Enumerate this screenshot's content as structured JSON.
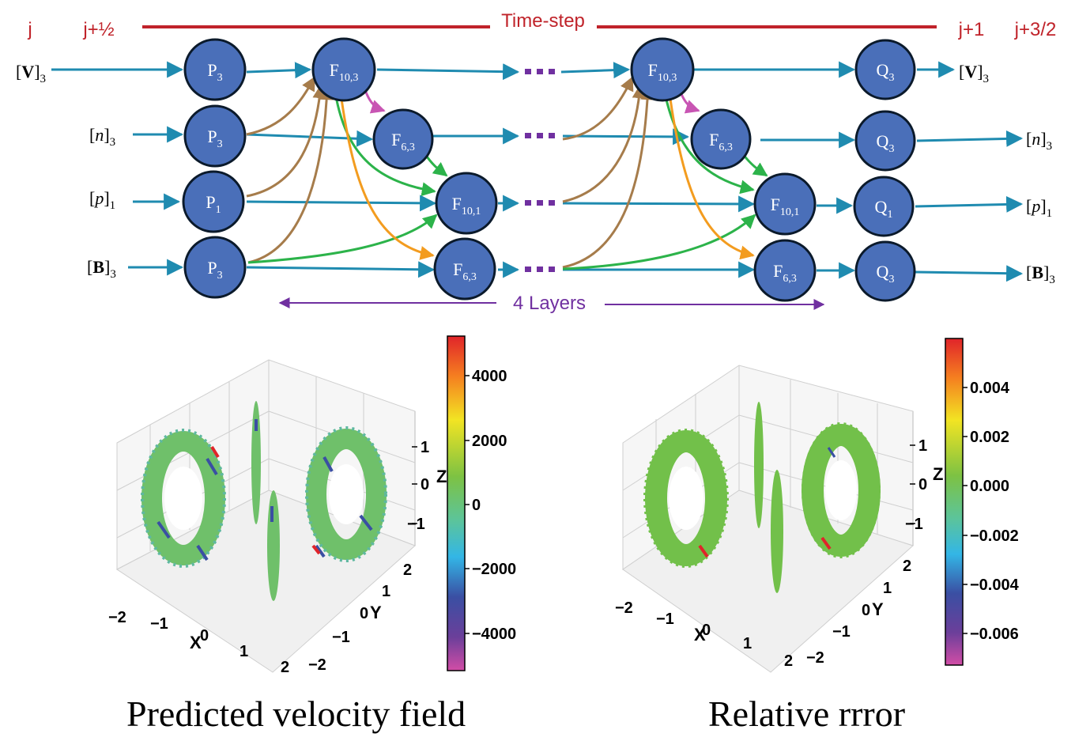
{
  "header": {
    "step_labels": [
      "j",
      "j+½",
      "j+1",
      "j+3/2"
    ],
    "timestep_label": "Time-step",
    "layers_label": "4 Layers"
  },
  "colors": {
    "red_label": "#c0232a",
    "node_fill": "#4a6fb9",
    "node_stroke": "#0b1a2b",
    "teal_arrow": "#1f8bb0",
    "brown_arrow": "#a67c4b",
    "green_arrow": "#2cb34a",
    "orange_arrow": "#f39c1f",
    "magenta_arrow": "#c855b3",
    "purple": "#7030a0"
  },
  "rows": [
    {
      "input_base": "V",
      "input_sub": "3",
      "output_base": "V",
      "output_sub": "3"
    },
    {
      "input_base": "n",
      "input_sub": "3",
      "output_base": "n",
      "output_sub": "3"
    },
    {
      "input_base": "p",
      "input_sub": "1",
      "output_base": "p",
      "output_sub": "1"
    },
    {
      "input_base": "B",
      "input_sub": "3",
      "output_base": "B",
      "output_sub": "3"
    }
  ],
  "nodes": {
    "p_row0": {
      "letter": "P",
      "sub": "3"
    },
    "p_row1": {
      "letter": "P",
      "sub": "3"
    },
    "p_row2": {
      "letter": "P",
      "sub": "1"
    },
    "p_row3": {
      "letter": "P",
      "sub": "3"
    },
    "f_a0": {
      "letter": "F",
      "sub": "10,3"
    },
    "f_a1": {
      "letter": "F",
      "sub": "6,3"
    },
    "f_a2": {
      "letter": "F",
      "sub": "10,1"
    },
    "f_a3": {
      "letter": "F",
      "sub": "6,3"
    },
    "f_b0": {
      "letter": "F",
      "sub": "10,3"
    },
    "f_b1": {
      "letter": "F",
      "sub": "6,3"
    },
    "f_b2": {
      "letter": "F",
      "sub": "10,1"
    },
    "f_b3": {
      "letter": "F",
      "sub": "6,3"
    },
    "q_row0": {
      "letter": "Q",
      "sub": "3"
    },
    "q_row1": {
      "letter": "Q",
      "sub": "3"
    },
    "q_row2": {
      "letter": "Q",
      "sub": "1"
    },
    "q_row3": {
      "letter": "Q",
      "sub": "3"
    }
  },
  "plots": [
    {
      "caption": "Predicted velocity field",
      "colorbar_ticks": [
        "4000",
        "2000",
        "0",
        "−2000",
        "−4000"
      ],
      "x_ticks": [
        "−2",
        "−1",
        "0",
        "1",
        "2"
      ],
      "y_ticks": [
        "−2",
        "−1",
        "0",
        "1",
        "2"
      ],
      "z_ticks": [
        "1",
        "0",
        "−1"
      ],
      "x_label": "X",
      "y_label": "Y",
      "z_label": "Z"
    },
    {
      "caption": "Relative rrror",
      "colorbar_ticks": [
        "0.004",
        "0.002",
        "0.000",
        "−0.002",
        "−0.004",
        "−0.006"
      ],
      "x_ticks": [
        "−2",
        "−1",
        "0",
        "1",
        "2"
      ],
      "y_ticks": [
        "−2",
        "−1",
        "0",
        "1",
        "2"
      ],
      "z_ticks": [
        "1",
        "0",
        "−1"
      ],
      "x_label": "X",
      "y_label": "Y",
      "z_label": "Z"
    }
  ]
}
